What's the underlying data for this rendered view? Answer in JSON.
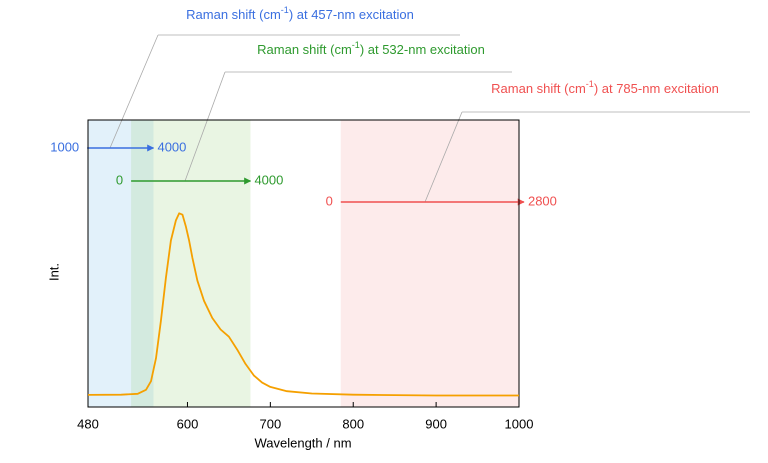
{
  "chart_data": {
    "type": "line",
    "xlabel": "Wavelength / nm",
    "ylabel": "Int.",
    "xlim": [
      480,
      1000
    ],
    "xticks": [
      480,
      600,
      700,
      800,
      900,
      1000
    ],
    "ylim": [
      0,
      1
    ],
    "color": "#f5a000",
    "x": [
      480,
      520,
      540,
      550,
      556,
      562,
      568,
      574,
      580,
      586,
      590,
      594,
      598,
      602,
      606,
      612,
      620,
      630,
      640,
      650,
      660,
      670,
      680,
      690,
      700,
      720,
      750,
      800,
      900,
      1000
    ],
    "values": [
      0.042,
      0.043,
      0.046,
      0.06,
      0.09,
      0.17,
      0.3,
      0.45,
      0.58,
      0.65,
      0.675,
      0.67,
      0.63,
      0.58,
      0.52,
      0.44,
      0.37,
      0.31,
      0.27,
      0.245,
      0.2,
      0.15,
      0.11,
      0.085,
      0.07,
      0.055,
      0.047,
      0.043,
      0.04,
      0.04
    ],
    "regions": [
      {
        "label_parts": [
          "Raman shift (cm",
          "-1",
          ") at 457-nm excitation"
        ],
        "color": "#3a6fe0",
        "fill": "#8cc8ec",
        "xrange": [
          479,
          559
        ],
        "shift_start": 1000,
        "shift_end": 4000
      },
      {
        "label_parts": [
          "Raman shift (cm",
          "-1",
          ") at 532-nm excitation"
        ],
        "color": "#2e9a2e",
        "fill": "#a6d890",
        "xrange": [
          532,
          676
        ],
        "shift_start": 0,
        "shift_end": 4000
      },
      {
        "label_parts": [
          "Raman shift (cm",
          "-1",
          ") at 785-nm excitation"
        ],
        "color": "#f05050",
        "fill": "#f8b0b0",
        "xrange": [
          785,
          1006
        ],
        "shift_start": 0,
        "shift_end": 2800
      }
    ]
  }
}
